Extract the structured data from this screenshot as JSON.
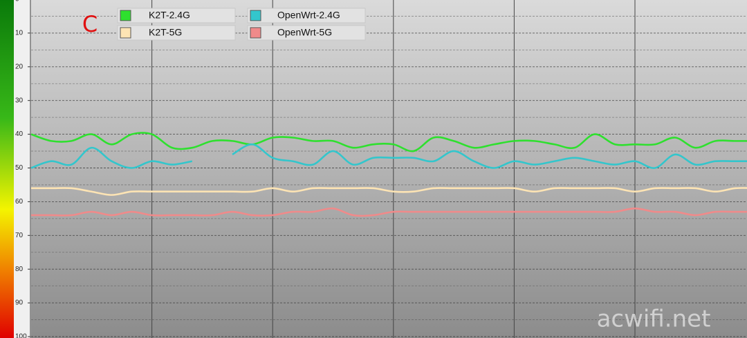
{
  "chart_data": {
    "type": "line",
    "annotation": "C",
    "watermark": "acwifi.net",
    "x": [
      0,
      1,
      2,
      3,
      4,
      5,
      6,
      7,
      8,
      9,
      10,
      11,
      12,
      13,
      14,
      15,
      16,
      17,
      18,
      19,
      20,
      21,
      22,
      23,
      24,
      25,
      26,
      27,
      28,
      29,
      30,
      31,
      32,
      33,
      34,
      35,
      36
    ],
    "xlim": [
      0,
      36
    ],
    "xgrid_at": [
      6,
      12,
      18,
      24,
      30
    ],
    "ylim": [
      0,
      100
    ],
    "y_inverted": true,
    "yticks": [
      0,
      10,
      20,
      30,
      40,
      50,
      60,
      70,
      80,
      90,
      100
    ],
    "minor_yticks": [
      5,
      15,
      25,
      35,
      45,
      55,
      65,
      75,
      85,
      95
    ],
    "grid": true,
    "series": [
      {
        "name": "K2T-2.4G",
        "color": "#2ee02e",
        "values": [
          40,
          42,
          42,
          40,
          43,
          40,
          40,
          44,
          44,
          42,
          42,
          43,
          41,
          41,
          42,
          42,
          44,
          43,
          43,
          45,
          41,
          42,
          44,
          43,
          42,
          42,
          43,
          44,
          40,
          43,
          43,
          43,
          41,
          44,
          42,
          42,
          42
        ]
      },
      {
        "name": "K2T-5G",
        "color": "#fde4b4",
        "values": [
          56,
          56,
          56,
          57,
          58,
          57,
          57,
          57,
          57,
          57,
          57,
          57,
          56,
          57,
          56,
          56,
          56,
          56,
          57,
          57,
          56,
          56,
          56,
          56,
          56,
          57,
          56,
          56,
          56,
          56,
          57,
          56,
          56,
          56,
          57,
          56,
          56
        ]
      },
      {
        "name": "OpenWrt-2.4G",
        "color": "#33c6cc",
        "values": [
          50,
          48,
          49,
          44,
          48,
          50,
          48,
          49,
          48,
          null,
          46,
          43,
          47,
          48,
          49,
          45,
          49,
          47,
          47,
          47,
          48,
          45,
          48,
          50,
          48,
          49,
          48,
          47,
          48,
          49,
          48,
          50,
          46,
          49,
          48,
          48,
          48
        ]
      },
      {
        "name": "OpenWrt-5G",
        "color": "#f08a8a",
        "values": [
          64,
          64,
          64,
          63,
          64,
          63,
          64,
          64,
          64,
          64,
          63,
          64,
          64,
          63,
          63,
          62,
          64,
          64,
          63,
          63,
          63,
          63,
          63,
          63,
          63,
          63,
          63,
          63,
          63,
          63,
          62,
          63,
          63,
          64,
          63,
          63,
          63
        ]
      }
    ]
  }
}
